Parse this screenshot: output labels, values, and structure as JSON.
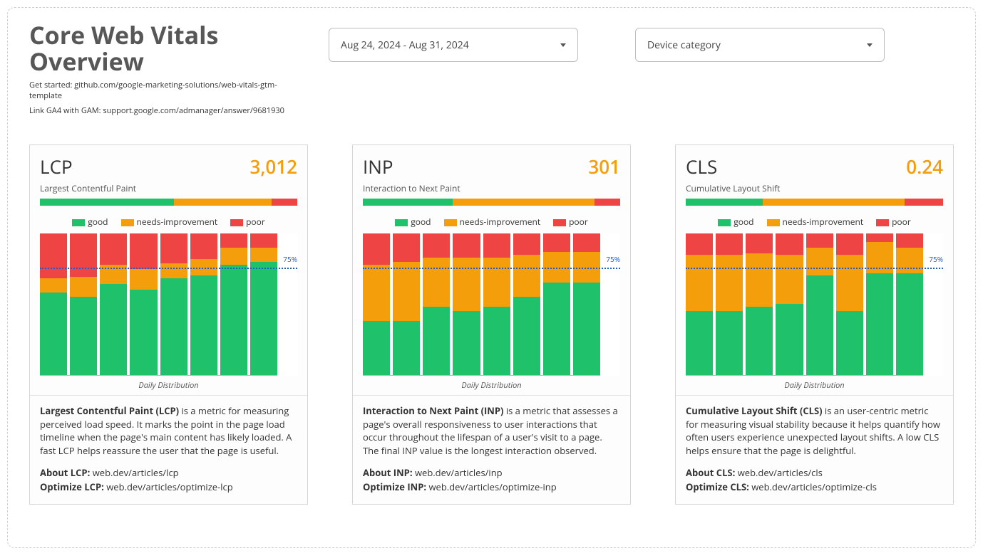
{
  "colors": {
    "good": "#1fc16b",
    "needs": "#f59e0b",
    "poor": "#ef4444",
    "accent": "#f59e0b",
    "title": "#575757",
    "threshold": "#1a5dd6"
  },
  "header": {
    "title": "Core Web Vitals Overview",
    "meta1": "Get started: github.com/google-marketing-solutions/web-vitals-gtm-template",
    "meta2": "Link GA4 with GAM: support.google.com/admanager/answer/9681930"
  },
  "date_selector": {
    "value": "Aug 24, 2024 - Aug 31, 2024"
  },
  "device_selector": {
    "value": "Device category"
  },
  "legend": {
    "good": "good",
    "needs": "needs-improvement",
    "poor": "poor"
  },
  "chart_caption": "Daily Distribution",
  "threshold": {
    "pct": 75,
    "label": "75%"
  },
  "cards": [
    {
      "abbrev": "LCP",
      "fullname": "Largest Contentful Paint",
      "value": "3,012",
      "hbar": {
        "good": 52,
        "needs": 38,
        "poor": 10
      },
      "bars": [
        {
          "good": 58,
          "needs": 10,
          "poor": 32
        },
        {
          "good": 55,
          "needs": 14,
          "poor": 31
        },
        {
          "good": 64,
          "needs": 14,
          "poor": 22
        },
        {
          "good": 60,
          "needs": 15,
          "poor": 25
        },
        {
          "good": 68,
          "needs": 11,
          "poor": 21
        },
        {
          "good": 70,
          "needs": 12,
          "poor": 18
        },
        {
          "good": 78,
          "needs": 12,
          "poor": 10
        },
        {
          "good": 80,
          "needs": 10,
          "poor": 10
        }
      ],
      "desc_bold": "Largest Contentful Paint (LCP)",
      "desc_rest": " is a metric for measuring perceived load speed. It marks the point in the page load timeline when the page's main content has likely loaded. A fast LCP helps reassure the user that the page is useful.",
      "about_label": "About LCP:",
      "about_link": "web.dev/articles/lcp",
      "opt_label": "Optimize LCP:",
      "opt_link": "web.dev/articles/optimize-lcp"
    },
    {
      "abbrev": "INP",
      "fullname": "Interaction to Next Paint",
      "value": "301",
      "hbar": {
        "good": 35,
        "needs": 55,
        "poor": 10
      },
      "bars": [
        {
          "good": 38,
          "needs": 40,
          "poor": 22
        },
        {
          "good": 38,
          "needs": 42,
          "poor": 20
        },
        {
          "good": 48,
          "needs": 35,
          "poor": 17
        },
        {
          "good": 45,
          "needs": 38,
          "poor": 17
        },
        {
          "good": 48,
          "needs": 35,
          "poor": 17
        },
        {
          "good": 55,
          "needs": 30,
          "poor": 15
        },
        {
          "good": 65,
          "needs": 22,
          "poor": 13
        },
        {
          "good": 65,
          "needs": 22,
          "poor": 13
        }
      ],
      "desc_bold": "Interaction to Next Paint (INP)",
      "desc_rest": " is a metric that assesses a page's overall responsiveness to user interactions that occur throughout the lifespan of a user's visit to a page. The final INP value is the longest interaction observed.",
      "about_label": "About INP:",
      "about_link": "web.dev/articles/inp",
      "opt_label": "Optimize INP:",
      "opt_link": "web.dev/articles/optimize-inp"
    },
    {
      "abbrev": "CLS",
      "fullname": "Cumulative Layout Shift",
      "value": "0.24",
      "hbar": {
        "good": 30,
        "needs": 55,
        "poor": 15
      },
      "bars": [
        {
          "good": 45,
          "needs": 40,
          "poor": 15
        },
        {
          "good": 45,
          "needs": 40,
          "poor": 15
        },
        {
          "good": 48,
          "needs": 38,
          "poor": 14
        },
        {
          "good": 50,
          "needs": 35,
          "poor": 15
        },
        {
          "good": 70,
          "needs": 20,
          "poor": 10
        },
        {
          "good": 45,
          "needs": 40,
          "poor": 15
        },
        {
          "good": 72,
          "needs": 22,
          "poor": 6
        },
        {
          "good": 72,
          "needs": 18,
          "poor": 10
        }
      ],
      "desc_bold": "Cumulative Layout Shift (CLS)",
      "desc_rest": " is an user-centric metric for measuring visual stability because it helps quantify how often users experience unexpected layout shifts. A low CLS helps ensure that the page is delightful.",
      "about_label": "About CLS:",
      "about_link": "web.dev/articles/cls",
      "opt_label": "Optimize CLS:",
      "opt_link": "web.dev/articles/optimize-cls"
    }
  ]
}
